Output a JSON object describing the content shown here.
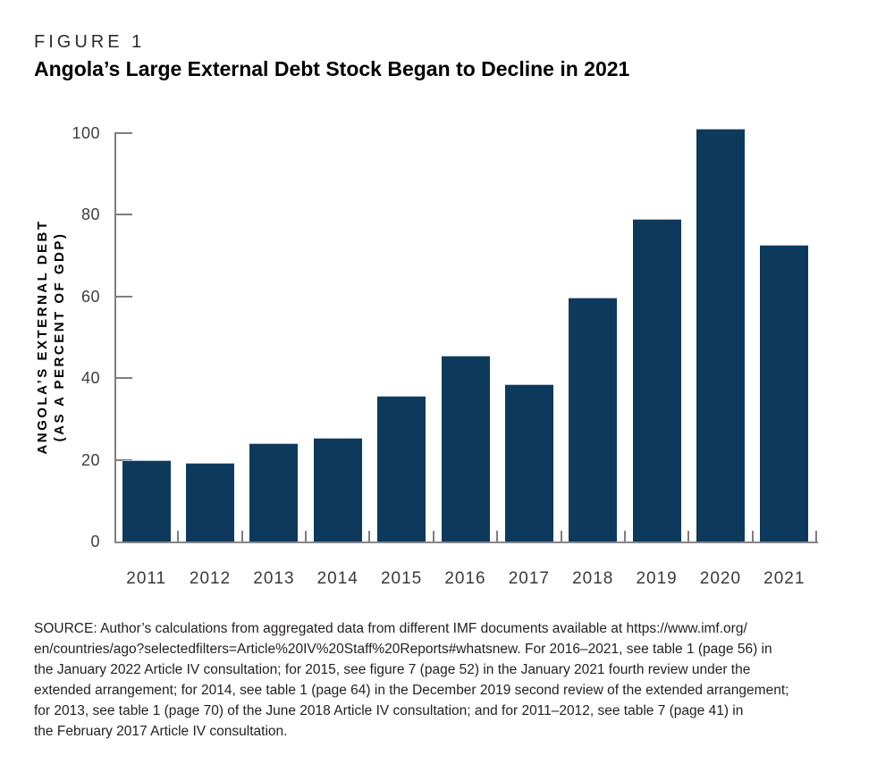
{
  "figure": {
    "label": "FIGURE 1",
    "title": "Angola’s Large External Debt Stock Began to Decline in 2021"
  },
  "chart_data": {
    "type": "bar",
    "categories": [
      "2011",
      "2012",
      "2013",
      "2014",
      "2015",
      "2016",
      "2017",
      "2018",
      "2019",
      "2020",
      "2021"
    ],
    "values": [
      19.7,
      19.0,
      23.8,
      25.1,
      35.4,
      45.3,
      38.3,
      59.5,
      78.8,
      100.9,
      72.4
    ],
    "title": "Angola’s Large External Debt Stock Began to Decline in 2021",
    "xlabel": "",
    "ylabel": "ANGOLA’S EXTERNAL DEBT (AS A PERCENT OF GDP)",
    "ylabel_line1": "ANGOLA’S EXTERNAL DEBT",
    "ylabel_line2": "(AS A PERCENT OF GDP)",
    "ylim": [
      0,
      100
    ],
    "yticks": [
      0,
      20,
      40,
      60,
      80,
      100
    ],
    "grid": false,
    "legend": "none",
    "bar_color": "#0d3a5c",
    "axis_color": "#7d7e81",
    "tick_label_color": "#3d3d3f"
  },
  "source": {
    "text": "SOURCE: Author’s calculations from aggregated data from different IMF documents available at https://www.imf.org/\nen/countries/ago?selectedfilters=Article%20IV%20Staff%20Reports#whatsnew. For 2016–2021, see table 1 (page 56) in\nthe January 2022 Article IV consultation; for 2015, see figure 7 (page 52) in the January 2021 fourth review under the\nextended arrangement; for 2014, see table 1 (page 64) in the December 2019 second review of the extended arrangement;\nfor 2013, see table 1 (page 70) of the June 2018 Article IV consultation; and for 2011–2012, see table 7 (page 41) in\nthe February 2017 Article IV consultation."
  }
}
